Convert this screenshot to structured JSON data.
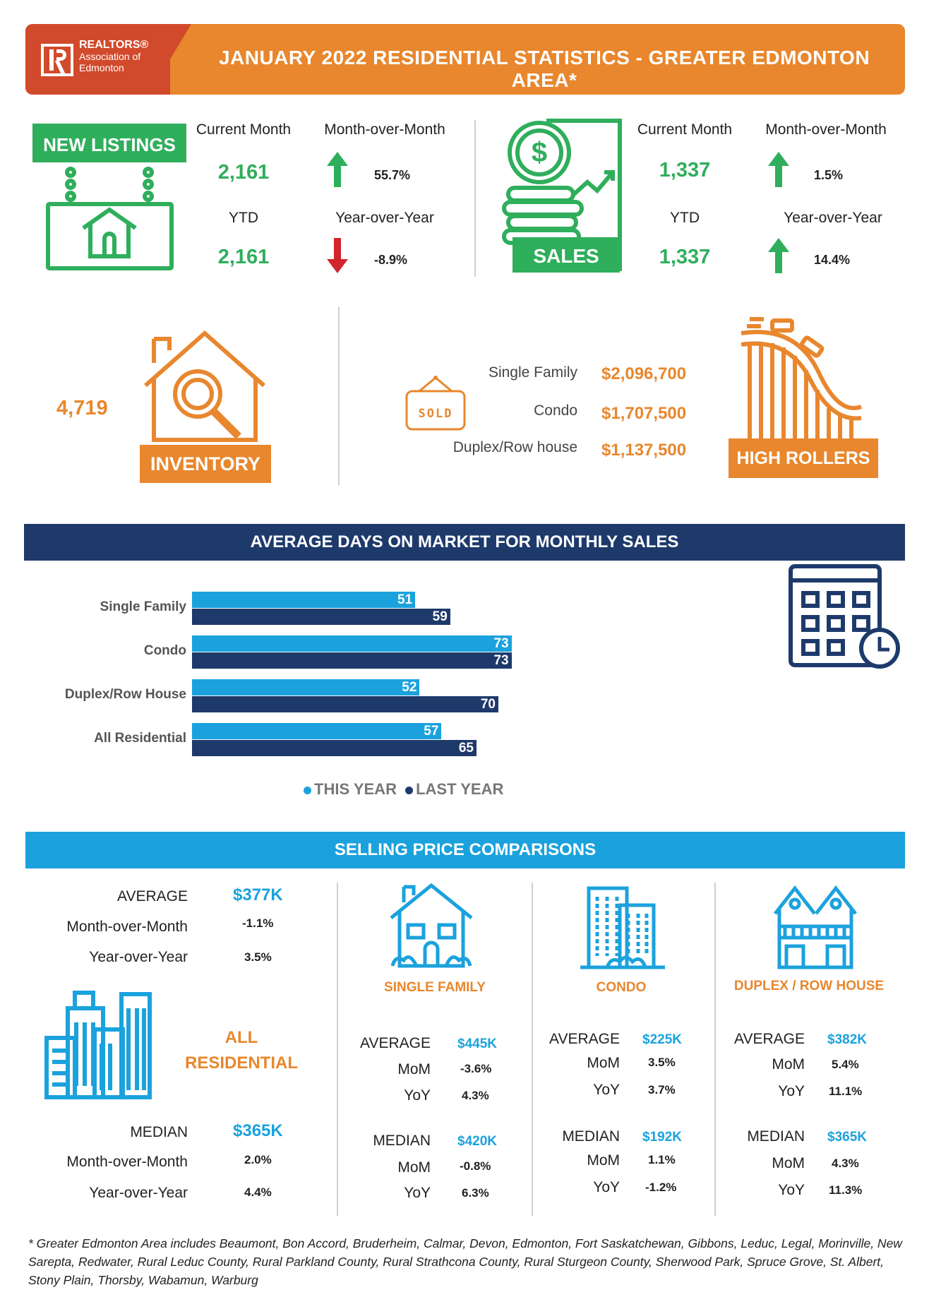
{
  "header": {
    "org_line1": "REALTORS®",
    "org_line2": "Association of",
    "org_line3": "Edmonton",
    "title": "JANUARY 2022 RESIDENTIAL STATISTICS - GREATER EDMONTON AREA*"
  },
  "new_listings": {
    "sign": "NEW  LISTINGS",
    "current_month_label": "Current Month",
    "current_month_value": "2,161",
    "mom_label": "Month-over-Month",
    "mom_value": "55.7%",
    "mom_direction": "up",
    "ytd_label": "YTD",
    "ytd_value": "2,161",
    "yoy_label": "Year-over-Year",
    "yoy_value": "-8.9%",
    "yoy_direction": "down"
  },
  "sales": {
    "sign": "SALES",
    "current_month_label": "Current Month",
    "current_month_value": "1,337",
    "mom_label": "Month-over-Month",
    "mom_value": "1.5%",
    "mom_direction": "up",
    "ytd_label": "YTD",
    "ytd_value": "1,337",
    "yoy_label": "Year-over-Year",
    "yoy_value": "14.4%",
    "yoy_direction": "up"
  },
  "inventory": {
    "value": "4,719",
    "sign": "INVENTORY"
  },
  "high_rollers": {
    "sold_tag": "SOLD",
    "sign": "HIGH ROLLERS",
    "rows": [
      {
        "label": "Single Family",
        "value": "$2,096,700"
      },
      {
        "label": "Condo",
        "value": "$1,707,500"
      },
      {
        "label": "Duplex/Row house",
        "value": "$1,137,500"
      }
    ]
  },
  "dom_banner": "AVERAGE DAYS ON MARKET FOR MONTHLY SALES",
  "chart_data": {
    "type": "bar",
    "orientation": "horizontal",
    "title": "AVERAGE DAYS ON MARKET FOR MONTHLY SALES",
    "categories": [
      "Single Family",
      "Condo",
      "Duplex/Row House",
      "All Residential"
    ],
    "series": [
      {
        "name": "THIS YEAR",
        "values": [
          51,
          73,
          52,
          57
        ],
        "color": "#1ba2dd"
      },
      {
        "name": "LAST YEAR",
        "values": [
          59,
          73,
          70,
          65
        ],
        "color": "#1e3a6b"
      }
    ],
    "legend": "bottom",
    "grid": false
  },
  "price_banner": "SELLING PRICE COMPARISONS",
  "all_residential": {
    "title_line1": "ALL",
    "title_line2": "RESIDENTIAL",
    "average_label": "AVERAGE",
    "average_value": "$377K",
    "avg_mom_label": "Month-over-Month",
    "avg_mom_value": "-1.1%",
    "avg_yoy_label": "Year-over-Year",
    "avg_yoy_value": "3.5%",
    "median_label": "MEDIAN",
    "median_value": "$365K",
    "med_mom_label": "Month-over-Month",
    "med_mom_value": "2.0%",
    "med_yoy_label": "Year-over-Year",
    "med_yoy_value": "4.4%"
  },
  "single_family": {
    "title": "SINGLE FAMILY",
    "average_label": "AVERAGE",
    "average_value": "$445K",
    "avg_mom_label": "MoM",
    "avg_mom_value": "-3.6%",
    "avg_yoy_label": "YoY",
    "avg_yoy_value": "4.3%",
    "median_label": "MEDIAN",
    "median_value": "$420K",
    "med_mom_label": "MoM",
    "med_mom_value": "-0.8%",
    "med_yoy_label": "YoY",
    "med_yoy_value": "6.3%"
  },
  "condo": {
    "title": "CONDO",
    "average_label": "AVERAGE",
    "average_value": "$225K",
    "avg_mom_label": "MoM",
    "avg_mom_value": "3.5%",
    "avg_yoy_label": "YoY",
    "avg_yoy_value": "3.7%",
    "median_label": "MEDIAN",
    "median_value": "$192K",
    "med_mom_label": "MoM",
    "med_mom_value": "1.1%",
    "med_yoy_label": "YoY",
    "med_yoy_value": "-1.2%"
  },
  "duplex": {
    "title": "DUPLEX / ROW HOUSE",
    "average_label": "AVERAGE",
    "average_value": "$382K",
    "avg_mom_label": "MoM",
    "avg_mom_value": "5.4%",
    "avg_yoy_label": "YoY",
    "avg_yoy_value": "11.1%",
    "median_label": "MEDIAN",
    "median_value": "$365K",
    "med_mom_label": "MoM",
    "med_mom_value": "4.3%",
    "med_yoy_label": "YoY",
    "med_yoy_value": "11.3%"
  },
  "footnote": "* Greater Edmonton Area includes Beaumont, Bon Accord, Bruderheim, Calmar, Devon, Edmonton, Fort Saskatchewan, Gibbons, Leduc, Legal, Morinville, New Sarepta, Redwater, Rural Leduc County, Rural Parkland County, Rural Strathcona County, Rural Sturgeon County, Sherwood Park, Spruce Grove, St. Albert, Stony Plain, Thorsby, Wabamun, Warburg",
  "colors": {
    "orange": "#e8872e",
    "red": "#d24a2c",
    "green": "#2fae5c",
    "navy": "#1e3a6b",
    "blue": "#1ba2dd",
    "down_arrow": "#d0262c"
  }
}
